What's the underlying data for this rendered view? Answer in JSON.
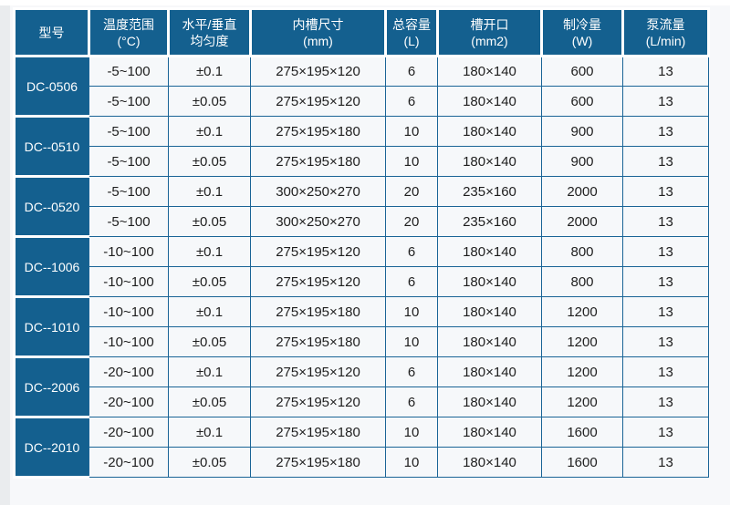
{
  "page": {
    "background": "#f7f8fa",
    "top_strip_color": "#ffffff",
    "left_strip_color": "#eaecee"
  },
  "table": {
    "colors": {
      "header_bg": "#14608f",
      "border": "#1a6496",
      "cell_bg": "#f6f8fa",
      "header_text": "#ffffff",
      "cell_text": "#1e1e1e",
      "separator": "#ffffff"
    },
    "columns": [
      {
        "label": "型号",
        "sub": ""
      },
      {
        "label": "温度范围",
        "sub": "(°C)"
      },
      {
        "label": "水平/垂直",
        "sub": "均匀度"
      },
      {
        "label": "内槽尺寸",
        "sub": "(mm)"
      },
      {
        "label": "总容量",
        "sub": "(L)"
      },
      {
        "label": "槽开口",
        "sub": "(mm2)"
      },
      {
        "label": "制冷量",
        "sub": "(W)"
      },
      {
        "label": "泵流量",
        "sub": "(L/min)"
      }
    ],
    "column_keys": [
      "temp",
      "uniformity",
      "tank",
      "capacity",
      "opening",
      "cooling",
      "flow"
    ],
    "groups": [
      {
        "model": "DC-0506",
        "rows": [
          {
            "temp": "-5~100",
            "uniformity": "±0.1",
            "tank": "275×195×120",
            "capacity": "6",
            "opening": "180×140",
            "cooling": "600",
            "flow": "13"
          },
          {
            "temp": "-5~100",
            "uniformity": "±0.05",
            "tank": "275×195×120",
            "capacity": "6",
            "opening": "180×140",
            "cooling": "600",
            "flow": "13"
          }
        ]
      },
      {
        "model": "DC--0510",
        "rows": [
          {
            "temp": "-5~100",
            "uniformity": "±0.1",
            "tank": "275×195×180",
            "capacity": "10",
            "opening": "180×140",
            "cooling": "900",
            "flow": "13"
          },
          {
            "temp": "-5~100",
            "uniformity": "±0.05",
            "tank": "275×195×180",
            "capacity": "10",
            "opening": "180×140",
            "cooling": "900",
            "flow": "13"
          }
        ]
      },
      {
        "model": "DC--0520",
        "rows": [
          {
            "temp": "-5~100",
            "uniformity": "±0.1",
            "tank": "300×250×270",
            "capacity": "20",
            "opening": "235×160",
            "cooling": "2000",
            "flow": "13"
          },
          {
            "temp": "-5~100",
            "uniformity": "±0.05",
            "tank": "300×250×270",
            "capacity": "20",
            "opening": "235×160",
            "cooling": "2000",
            "flow": "13"
          }
        ]
      },
      {
        "model": "DC--1006",
        "rows": [
          {
            "temp": "-10~100",
            "uniformity": "±0.1",
            "tank": "275×195×120",
            "capacity": "6",
            "opening": "180×140",
            "cooling": "800",
            "flow": "13"
          },
          {
            "temp": "-10~100",
            "uniformity": "±0.05",
            "tank": "275×195×120",
            "capacity": "6",
            "opening": "180×140",
            "cooling": "800",
            "flow": "13"
          }
        ]
      },
      {
        "model": "DC--1010",
        "rows": [
          {
            "temp": "-10~100",
            "uniformity": "±0.1",
            "tank": "275×195×180",
            "capacity": "10",
            "opening": "180×140",
            "cooling": "1200",
            "flow": "13"
          },
          {
            "temp": "-10~100",
            "uniformity": "±0.05",
            "tank": "275×195×180",
            "capacity": "10",
            "opening": "180×140",
            "cooling": "1200",
            "flow": "13"
          }
        ]
      },
      {
        "model": "DC--2006",
        "rows": [
          {
            "temp": "-20~100",
            "uniformity": "±0.1",
            "tank": "275×195×120",
            "capacity": "6",
            "opening": "180×140",
            "cooling": "1200",
            "flow": "13"
          },
          {
            "temp": "-20~100",
            "uniformity": "±0.05",
            "tank": "275×195×120",
            "capacity": "6",
            "opening": "180×140",
            "cooling": "1200",
            "flow": "13"
          }
        ]
      },
      {
        "model": "DC--2010",
        "rows": [
          {
            "temp": "-20~100",
            "uniformity": "±0.1",
            "tank": "275×195×180",
            "capacity": "10",
            "opening": "180×140",
            "cooling": "1600",
            "flow": "13"
          },
          {
            "temp": "-20~100",
            "uniformity": "±0.05",
            "tank": "275×195×180",
            "capacity": "10",
            "opening": "180×140",
            "cooling": "1600",
            "flow": "13"
          }
        ]
      }
    ]
  }
}
